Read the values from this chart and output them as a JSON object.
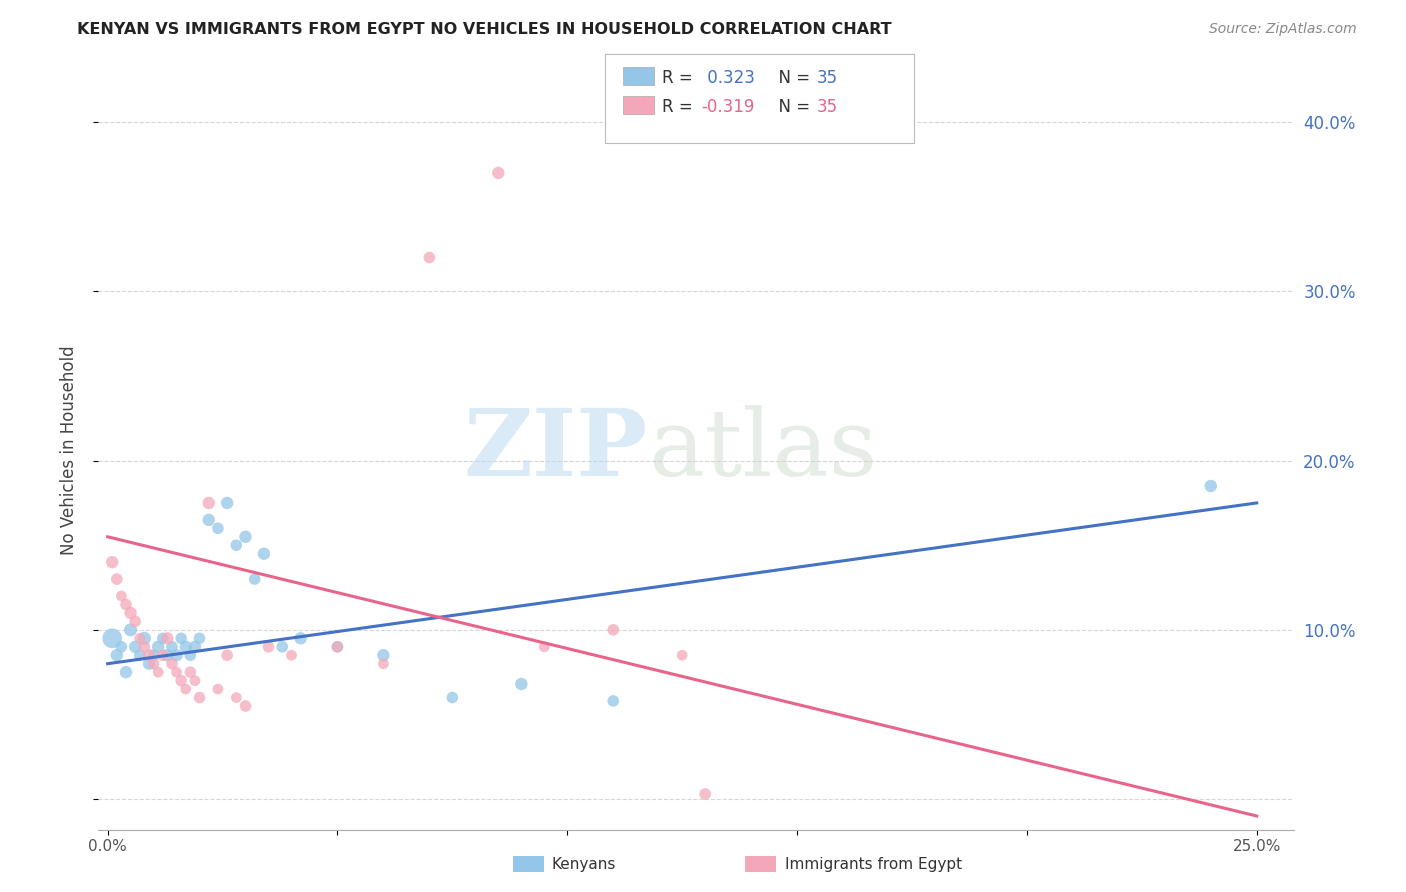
{
  "title": "KENYAN VS IMMIGRANTS FROM EGYPT NO VEHICLES IN HOUSEHOLD CORRELATION CHART",
  "source": "Source: ZipAtlas.com",
  "ylabel": "No Vehicles in Household",
  "xlabel_kenyans": "Kenyans",
  "xlabel_egypt": "Immigrants from Egypt",
  "y_ticks": [
    0.0,
    0.1,
    0.2,
    0.3,
    0.4
  ],
  "y_tick_labels": [
    "",
    "10.0%",
    "20.0%",
    "30.0%",
    "40.0%"
  ],
  "xlim": [
    -0.002,
    0.258
  ],
  "ylim": [
    -0.018,
    0.43
  ],
  "r_kenyan": 0.323,
  "n_kenyan": 35,
  "r_egypt": -0.319,
  "n_egypt": 35,
  "color_kenyan": "#93C6E8",
  "color_egypt": "#F4A7B9",
  "line_color_kenyan": "#4472C4",
  "line_color_egypt": "#E8648A",
  "background_color": "#FFFFFF",
  "grid_color": "#CCCCCC",
  "watermark_zip": "ZIP",
  "watermark_atlas": "atlas",
  "kenyan_x": [
    0.001,
    0.002,
    0.003,
    0.004,
    0.005,
    0.006,
    0.007,
    0.008,
    0.009,
    0.01,
    0.011,
    0.012,
    0.013,
    0.014,
    0.015,
    0.016,
    0.017,
    0.018,
    0.019,
    0.02,
    0.022,
    0.024,
    0.026,
    0.028,
    0.03,
    0.032,
    0.034,
    0.038,
    0.042,
    0.05,
    0.06,
    0.075,
    0.09,
    0.11,
    0.24
  ],
  "kenyan_y": [
    0.095,
    0.085,
    0.09,
    0.075,
    0.1,
    0.09,
    0.085,
    0.095,
    0.08,
    0.085,
    0.09,
    0.095,
    0.085,
    0.09,
    0.085,
    0.095,
    0.09,
    0.085,
    0.09,
    0.095,
    0.165,
    0.16,
    0.175,
    0.15,
    0.155,
    0.13,
    0.145,
    0.09,
    0.095,
    0.09,
    0.085,
    0.06,
    0.068,
    0.058,
    0.185
  ],
  "kenyan_size": [
    200,
    80,
    70,
    80,
    90,
    80,
    70,
    90,
    80,
    70,
    80,
    70,
    80,
    70,
    80,
    70,
    80,
    70,
    80,
    70,
    80,
    70,
    80,
    70,
    80,
    70,
    80,
    70,
    80,
    70,
    80,
    70,
    80,
    70,
    80
  ],
  "egypt_x": [
    0.001,
    0.002,
    0.003,
    0.004,
    0.005,
    0.006,
    0.007,
    0.008,
    0.009,
    0.01,
    0.011,
    0.012,
    0.013,
    0.014,
    0.015,
    0.016,
    0.017,
    0.018,
    0.019,
    0.02,
    0.022,
    0.024,
    0.026,
    0.028,
    0.03,
    0.035,
    0.04,
    0.05,
    0.06,
    0.07,
    0.085,
    0.095,
    0.11,
    0.125,
    0.13
  ],
  "egypt_y": [
    0.14,
    0.13,
    0.12,
    0.115,
    0.11,
    0.105,
    0.095,
    0.09,
    0.085,
    0.08,
    0.075,
    0.085,
    0.095,
    0.08,
    0.075,
    0.07,
    0.065,
    0.075,
    0.07,
    0.06,
    0.175,
    0.065,
    0.085,
    0.06,
    0.055,
    0.09,
    0.085,
    0.09,
    0.08,
    0.32,
    0.37,
    0.09,
    0.1,
    0.085,
    0.003
  ],
  "egypt_size": [
    80,
    70,
    60,
    70,
    80,
    70,
    60,
    70,
    80,
    70,
    60,
    70,
    80,
    70,
    60,
    70,
    60,
    70,
    60,
    70,
    80,
    60,
    70,
    60,
    70,
    70,
    60,
    70,
    60,
    70,
    80,
    60,
    70,
    60,
    70
  ]
}
